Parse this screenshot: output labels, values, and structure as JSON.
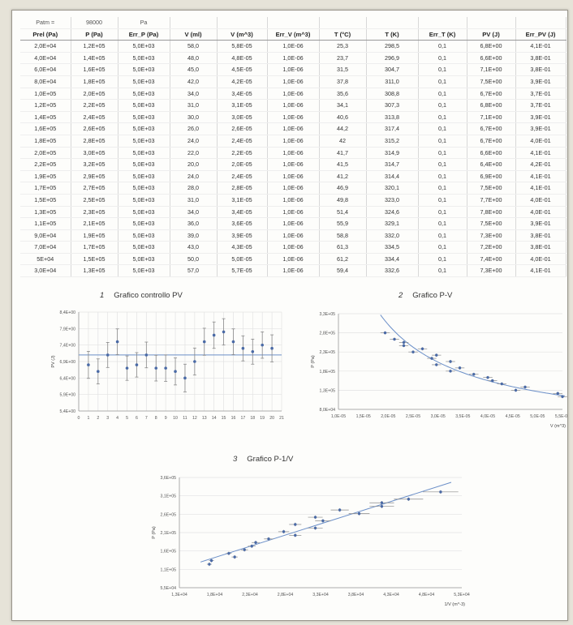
{
  "table": {
    "patm": {
      "label": "Patm =",
      "value": "98000",
      "unit": "Pa"
    },
    "headers": [
      "Prel (Pa)",
      "P (Pa)",
      "Err_P (Pa)",
      "V (ml)",
      "V (m^3)",
      "Err_V (m^3)",
      "T (°C)",
      "T (K)",
      "Err_T (K)",
      "PV (J)",
      "Err_PV (J)"
    ],
    "rows": [
      [
        "2,0E+04",
        "1,2E+05",
        "5,0E+03",
        "58,0",
        "5,8E-05",
        "1,0E-06",
        "25,3",
        "298,5",
        "0,1",
        "6,8E+00",
        "4,1E-01"
      ],
      [
        "4,0E+04",
        "1,4E+05",
        "5,0E+03",
        "48,0",
        "4,8E-05",
        "1,0E-06",
        "23,7",
        "296,9",
        "0,1",
        "6,6E+00",
        "3,8E-01"
      ],
      [
        "6,0E+04",
        "1,6E+05",
        "5,0E+03",
        "45,0",
        "4,5E-05",
        "1,0E-06",
        "31,5",
        "304,7",
        "0,1",
        "7,1E+00",
        "3,8E-01"
      ],
      [
        "8,0E+04",
        "1,8E+05",
        "5,0E+03",
        "42,0",
        "4,2E-05",
        "1,0E-06",
        "37,8",
        "311,0",
        "0,1",
        "7,5E+00",
        "3,9E-01"
      ],
      [
        "1,0E+05",
        "2,0E+05",
        "5,0E+03",
        "34,0",
        "3,4E-05",
        "1,0E-06",
        "35,6",
        "308,8",
        "0,1",
        "6,7E+00",
        "3,7E-01"
      ],
      [
        "1,2E+05",
        "2,2E+05",
        "5,0E+03",
        "31,0",
        "3,1E-05",
        "1,0E-06",
        "34,1",
        "307,3",
        "0,1",
        "6,8E+00",
        "3,7E-01"
      ],
      [
        "1,4E+05",
        "2,4E+05",
        "5,0E+03",
        "30,0",
        "3,0E-05",
        "1,0E-06",
        "40,6",
        "313,8",
        "0,1",
        "7,1E+00",
        "3,9E-01"
      ],
      [
        "1,6E+05",
        "2,6E+05",
        "5,0E+03",
        "26,0",
        "2,6E-05",
        "1,0E-06",
        "44,2",
        "317,4",
        "0,1",
        "6,7E+00",
        "3,9E-01"
      ],
      [
        "1,8E+05",
        "2,8E+05",
        "5,0E+03",
        "24,0",
        "2,4E-05",
        "1,0E-06",
        "42",
        "315,2",
        "0,1",
        "6,7E+00",
        "4,0E-01"
      ],
      [
        "2,0E+05",
        "3,0E+05",
        "5,0E+03",
        "22,0",
        "2,2E-05",
        "1,0E-06",
        "41,7",
        "314,9",
        "0,1",
        "6,6E+00",
        "4,1E-01"
      ],
      [
        "2,2E+05",
        "3,2E+05",
        "5,0E+03",
        "20,0",
        "2,0E-05",
        "1,0E-06",
        "41,5",
        "314,7",
        "0,1",
        "6,4E+00",
        "4,2E-01"
      ],
      [
        "1,9E+05",
        "2,9E+05",
        "5,0E+03",
        "24,0",
        "2,4E-05",
        "1,0E-06",
        "41,2",
        "314,4",
        "0,1",
        "6,9E+00",
        "4,1E-01"
      ],
      [
        "1,7E+05",
        "2,7E+05",
        "5,0E+03",
        "28,0",
        "2,8E-05",
        "1,0E-06",
        "46,9",
        "320,1",
        "0,1",
        "7,5E+00",
        "4,1E-01"
      ],
      [
        "1,5E+05",
        "2,5E+05",
        "5,0E+03",
        "31,0",
        "3,1E-05",
        "1,0E-06",
        "49,8",
        "323,0",
        "0,1",
        "7,7E+00",
        "4,0E-01"
      ],
      [
        "1,3E+05",
        "2,3E+05",
        "5,0E+03",
        "34,0",
        "3,4E-05",
        "1,0E-06",
        "51,4",
        "324,6",
        "0,1",
        "7,8E+00",
        "4,0E-01"
      ],
      [
        "1,1E+05",
        "2,1E+05",
        "5,0E+03",
        "36,0",
        "3,6E-05",
        "1,0E-06",
        "55,9",
        "329,1",
        "0,1",
        "7,5E+00",
        "3,9E-01"
      ],
      [
        "9,0E+04",
        "1,9E+05",
        "5,0E+03",
        "39,0",
        "3,9E-05",
        "1,0E-06",
        "58,8",
        "332,0",
        "0,1",
        "7,3E+00",
        "3,8E-01"
      ],
      [
        "7,0E+04",
        "1,7E+05",
        "5,0E+03",
        "43,0",
        "4,3E-05",
        "1,0E-06",
        "61,3",
        "334,5",
        "0,1",
        "7,2E+00",
        "3,8E-01"
      ],
      [
        "5E+04",
        "1,5E+05",
        "5,0E+03",
        "50,0",
        "5,0E-05",
        "1,0E-06",
        "61,2",
        "334,4",
        "0,1",
        "7,4E+00",
        "4,0E-01"
      ],
      [
        "3,0E+04",
        "1,3E+05",
        "5,0E+03",
        "57,0",
        "5,7E-05",
        "1,0E-06",
        "59,4",
        "332,6",
        "0,1",
        "7,3E+00",
        "4,1E-01"
      ]
    ]
  },
  "charts_meta": [
    {
      "number": "1",
      "title": "Grafico controllo PV"
    },
    {
      "number": "2",
      "title": "Grafico P-V"
    },
    {
      "number": "3",
      "title": "Grafico P-1/V"
    }
  ],
  "colors": {
    "marker": "#4a6aa6",
    "errorbar": "#8a8a8a",
    "trend": "#6b8fc8",
    "grid": "#e2e2e2",
    "axis": "#999999"
  },
  "chart_data": [
    {
      "type": "scatter",
      "title": "Grafico controllo PV",
      "ylabel": "PV (J)",
      "xlabel": "",
      "x": [
        1,
        2,
        3,
        4,
        5,
        6,
        7,
        8,
        9,
        10,
        11,
        12,
        13,
        14,
        15,
        16,
        17,
        18,
        19,
        20
      ],
      "y": [
        6.8,
        6.6,
        7.1,
        7.5,
        6.7,
        6.8,
        7.1,
        6.7,
        6.7,
        6.6,
        6.4,
        6.9,
        7.5,
        7.7,
        7.8,
        7.5,
        7.3,
        7.2,
        7.4,
        7.3
      ],
      "yerr": [
        0.41,
        0.38,
        0.38,
        0.39,
        0.37,
        0.37,
        0.39,
        0.39,
        0.4,
        0.41,
        0.42,
        0.41,
        0.41,
        0.4,
        0.4,
        0.39,
        0.38,
        0.38,
        0.4,
        0.41
      ],
      "mean_line": 7.1,
      "xlim": [
        0,
        21
      ],
      "ylim": [
        5.4,
        8.4
      ],
      "xticks": [
        "0",
        "1",
        "2",
        "3",
        "4",
        "5",
        "6",
        "7",
        "8",
        "9",
        "10",
        "11",
        "12",
        "13",
        "14",
        "15",
        "16",
        "17",
        "18",
        "19",
        "20",
        "21"
      ],
      "yticks": [
        "5,4E+00",
        "5,9E+00",
        "6,4E+00",
        "6,9E+00",
        "7,4E+00",
        "7,9E+00",
        "8,4E+00"
      ],
      "grid": true
    },
    {
      "type": "scatter",
      "title": "Grafico P-V",
      "ylabel": "P (Pa)",
      "xlabel": "V (m^3)",
      "x": [
        5.8e-05,
        4.8e-05,
        4.5e-05,
        4.2e-05,
        3.4e-05,
        3.1e-05,
        3e-05,
        2.6e-05,
        2.4e-05,
        2.2e-05,
        2e-05,
        2.4e-05,
        2.8e-05,
        3.1e-05,
        3.4e-05,
        3.6e-05,
        3.9e-05,
        4.3e-05,
        5e-05,
        5.7e-05
      ],
      "y": [
        120000.0,
        140000.0,
        160000.0,
        180000.0,
        200000.0,
        220000.0,
        240000.0,
        260000.0,
        280000.0,
        300000.0,
        320000.0,
        290000.0,
        270000.0,
        250000.0,
        230000.0,
        210000.0,
        190000.0,
        170000.0,
        150000.0,
        130000.0
      ],
      "xerr": 1e-06,
      "yerr": 5000.0,
      "trend": "power",
      "xlim": [
        1e-05,
        5.8e-05
      ],
      "ylim": [
        80000.0,
        380000.0
      ],
      "xticks": [
        "1,0E-05",
        "1,5E-05",
        "2,0E-05",
        "2,5E-05",
        "3,0E-05",
        "3,5E-05",
        "4,0E-05",
        "4,5E-05",
        "5,0E-05",
        "5,5E-05"
      ],
      "yticks": [
        "8,0E+04",
        "1,3E+05",
        "1,8E+05",
        "2,3E+05",
        "2,8E+05",
        "3,3E+05"
      ],
      "grid": false
    },
    {
      "type": "scatter",
      "title": "Grafico P-1/V",
      "ylabel": "P (Pa)",
      "xlabel": "1/V (m^-3)",
      "x": [
        17241,
        20833,
        22222,
        23810,
        29412,
        32258,
        33333,
        38462,
        41667,
        45455,
        50000,
        41667,
        35714,
        32258,
        29412,
        27778,
        25641,
        23256,
        20000,
        17544
      ],
      "y": [
        120000.0,
        140000.0,
        160000.0,
        180000.0,
        200000.0,
        220000.0,
        240000.0,
        260000.0,
        280000.0,
        300000.0,
        320000.0,
        290000.0,
        270000.0,
        250000.0,
        230000.0,
        210000.0,
        190000.0,
        170000.0,
        150000.0,
        130000.0
      ],
      "yerr": 5000.0,
      "trend": "linear",
      "xlim": [
        13000,
        53000
      ],
      "ylim": [
        55000.0,
        360000.0
      ],
      "xticks": [
        "1,3E+04",
        "1,8E+04",
        "2,3E+04",
        "2,8E+04",
        "3,3E+04",
        "3,8E+04",
        "4,3E+04",
        "4,8E+04",
        "5,3E+04"
      ],
      "yticks": [
        "5,5E+04",
        "1,1E+05",
        "1,6E+05",
        "2,1E+05",
        "2,6E+05",
        "3,1E+05",
        "3,6E+05"
      ],
      "grid": false
    }
  ]
}
